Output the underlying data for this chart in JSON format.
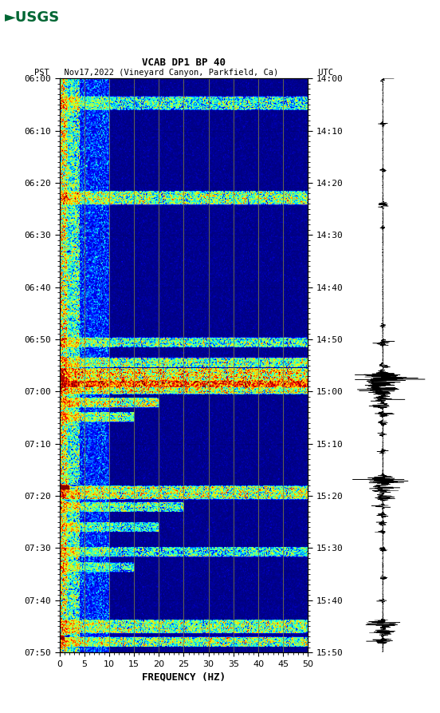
{
  "title_line1": "VCAB DP1 BP 40",
  "title_line2": "PST   Nov17,2022 (Vineyard Canyon, Parkfield, Ca)        UTC",
  "xlabel": "FREQUENCY (HZ)",
  "freq_min": 0,
  "freq_max": 50,
  "fig_width": 5.52,
  "fig_height": 8.93,
  "dpi": 100,
  "grid_color": "#808040",
  "grid_alpha": 0.8,
  "grid_linewidth": 0.7,
  "freq_tick_major": [
    0,
    5,
    10,
    15,
    20,
    25,
    30,
    35,
    40,
    45,
    50
  ],
  "pst_ticks": [
    "06:00",
    "06:10",
    "06:20",
    "06:30",
    "06:40",
    "06:50",
    "07:00",
    "07:10",
    "07:20",
    "07:30",
    "07:40",
    "07:50"
  ],
  "utc_ticks": [
    "14:00",
    "14:10",
    "14:20",
    "14:30",
    "14:40",
    "14:50",
    "15:00",
    "15:10",
    "15:20",
    "15:30",
    "15:40",
    "15:50"
  ],
  "num_freq_bins": 300,
  "num_time_bins": 600,
  "total_minutes": 115
}
